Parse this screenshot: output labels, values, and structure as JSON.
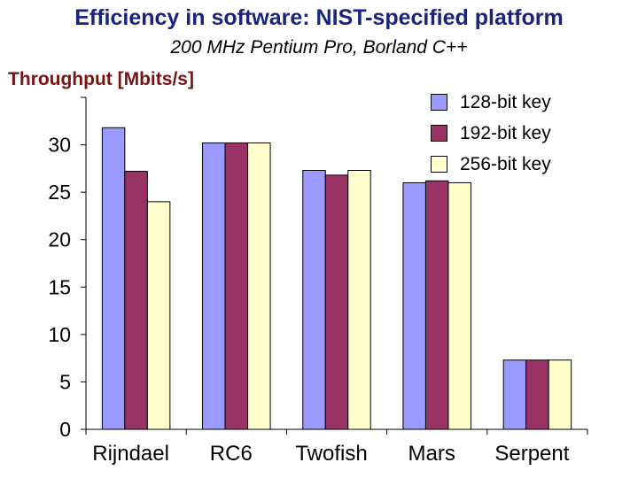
{
  "chart_data": {
    "type": "bar",
    "title": "Efficiency in software: NIST-specified platform",
    "subtitle": "200 MHz Pentium Pro, Borland C++",
    "ylabel": "Throughput [Mbits/s]",
    "xlabel": "",
    "categories": [
      "Rijndael",
      "RC6",
      "Twofish",
      "Mars",
      "Serpent"
    ],
    "series": [
      {
        "name": "128-bit key",
        "color": "#9999ff",
        "values": [
          31.8,
          30.2,
          27.3,
          26.0,
          7.3
        ]
      },
      {
        "name": "192-bit key",
        "color": "#993366",
        "values": [
          27.2,
          30.2,
          26.8,
          26.2,
          7.3
        ]
      },
      {
        "name": "256-bit key",
        "color": "#ffffcc",
        "values": [
          24.0,
          30.2,
          27.3,
          26.0,
          7.3
        ]
      }
    ],
    "ylim": [
      0,
      35
    ],
    "yticks": [
      0,
      5,
      10,
      15,
      20,
      25,
      30
    ],
    "grid": false,
    "legend": "top-right"
  }
}
